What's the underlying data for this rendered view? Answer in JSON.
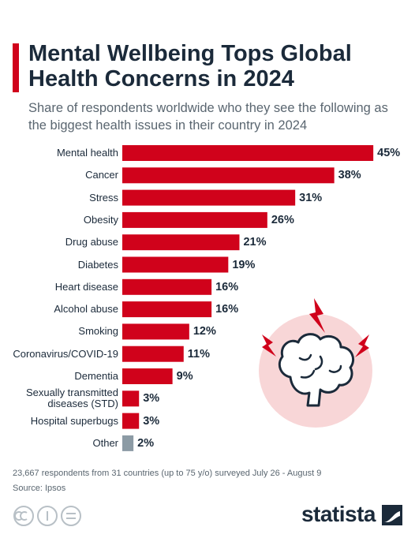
{
  "chart_data": {
    "type": "bar",
    "orientation": "horizontal",
    "title": "Mental Wellbeing Tops Global Health Concerns in 2024",
    "subtitle": "Share of respondents worldwide who they see the following as the biggest health issues in their country in 2024",
    "categories": [
      "Mental health",
      "Cancer",
      "Stress",
      "Obesity",
      "Drug abuse",
      "Diabetes",
      "Heart disease",
      "Alcohol abuse",
      "Smoking",
      "Coronavirus/COVID-19",
      "Dementia",
      "Sexually transmitted diseases (STD)",
      "Hospital superbugs",
      "Other"
    ],
    "values": [
      45,
      38,
      31,
      26,
      21,
      19,
      16,
      16,
      12,
      11,
      9,
      3,
      3,
      2
    ],
    "value_labels": [
      "45%",
      "38%",
      "31%",
      "26%",
      "21%",
      "19%",
      "16%",
      "16%",
      "12%",
      "11%",
      "9%",
      "3%",
      "3%",
      "2%"
    ],
    "colors": [
      "#d0021b",
      "#d0021b",
      "#d0021b",
      "#d0021b",
      "#d0021b",
      "#d0021b",
      "#d0021b",
      "#d0021b",
      "#d0021b",
      "#d0021b",
      "#d0021b",
      "#d0021b",
      "#d0021b",
      "#8c9ba5"
    ],
    "note": "23,667 respondents from 31 countries (up to 75 y/o) surveyed July 26 - August 9",
    "source": "Source: Ipsos",
    "brand": "statista"
  }
}
